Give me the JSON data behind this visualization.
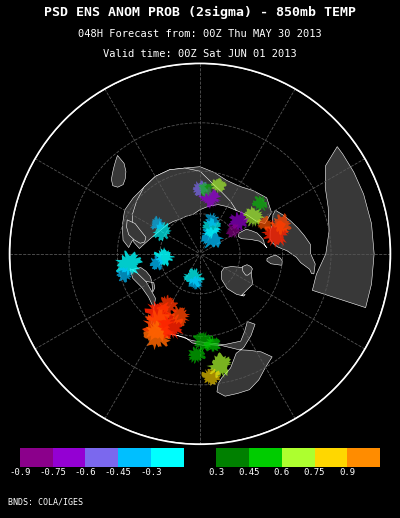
{
  "title_line1": "PSD ENS ANOM PROB (2sigma) - 850mb TEMP",
  "title_line2": "048H Forecast from: 00Z Thu MAY 30 2013",
  "title_line3": "Valid time: 00Z Sat JUN 01 2013",
  "credit": "BNDS: COLA/IGES",
  "cb_colors_neg": [
    "#8B008B",
    "#9400D3",
    "#7B68EE",
    "#00BFFF",
    "#00FFFF"
  ],
  "cb_colors_pos": [
    "#008000",
    "#00CC00",
    "#ADFF2F",
    "#FFD700",
    "#FF8C00"
  ],
  "tick_labels": [
    "-0.9",
    "-0.75",
    "-0.6",
    "-0.45",
    "-0.3",
    "0.3",
    "0.45",
    "0.6",
    "0.75",
    "0.9"
  ],
  "background_color": "#000000",
  "title_color": "#FFFFFF",
  "fontsize_title1": 9.5,
  "fontsize_title2": 7.5,
  "fontsize_title3": 7.5,
  "fontsize_credit": 6,
  "fontsize_tick": 6.5
}
